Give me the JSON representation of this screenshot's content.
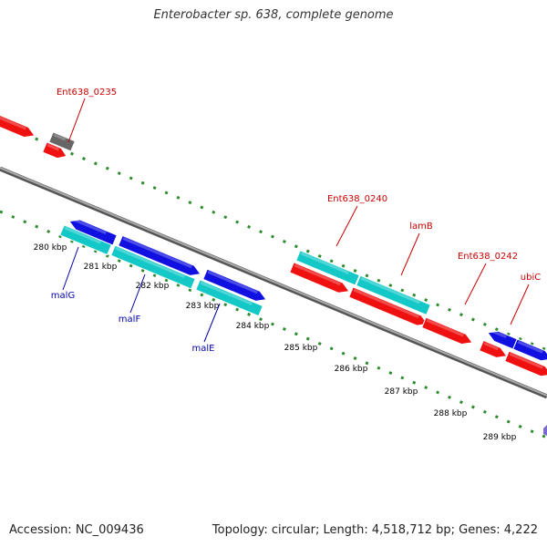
{
  "title": "Enterobacter sp. 638, complete genome",
  "footer": {
    "accession": "Accession: NC_009436",
    "summary": "Topology: circular; Length: 4,518,712 bp; Genes: 4,222"
  },
  "colors": {
    "cds_forward": "#1010e0",
    "cds_reverse": "#ef1010",
    "rna": "#14c8c8",
    "other": "#666666",
    "backbone": "#888888",
    "tick": "#2e8b2e",
    "label_red": "#cc0000",
    "label_blue": "#0000aa"
  },
  "scale": {
    "unit": "kbp",
    "ticks": [
      {
        "value": 280,
        "label": "280 kbp"
      },
      {
        "value": 281,
        "label": "281 kbp"
      },
      {
        "value": 282,
        "label": "282 kbp"
      },
      {
        "value": 283,
        "label": "283 kbp"
      },
      {
        "value": 284,
        "label": "284 kbp"
      },
      {
        "value": 285,
        "label": "285 kbp"
      },
      {
        "value": 286,
        "label": "286 kbp"
      },
      {
        "value": 287,
        "label": "287 kbp"
      },
      {
        "value": 288,
        "label": "288 kbp"
      },
      {
        "value": 289,
        "label": "289 kbp"
      }
    ]
  },
  "gene_labels": [
    {
      "id": "ent0235",
      "text": "Ent638_0235",
      "color": "red"
    },
    {
      "id": "ent0240",
      "text": "Ent638_0240",
      "color": "red"
    },
    {
      "id": "lamB",
      "text": "lamB",
      "color": "red"
    },
    {
      "id": "ent0242",
      "text": "Ent638_0242",
      "color": "red"
    },
    {
      "id": "ubiC",
      "text": "ubiC",
      "color": "red"
    },
    {
      "id": "malG",
      "text": "malG",
      "color": "blue"
    },
    {
      "id": "malF",
      "text": "malF",
      "color": "blue"
    },
    {
      "id": "malE",
      "text": "malE",
      "color": "blue"
    }
  ]
}
